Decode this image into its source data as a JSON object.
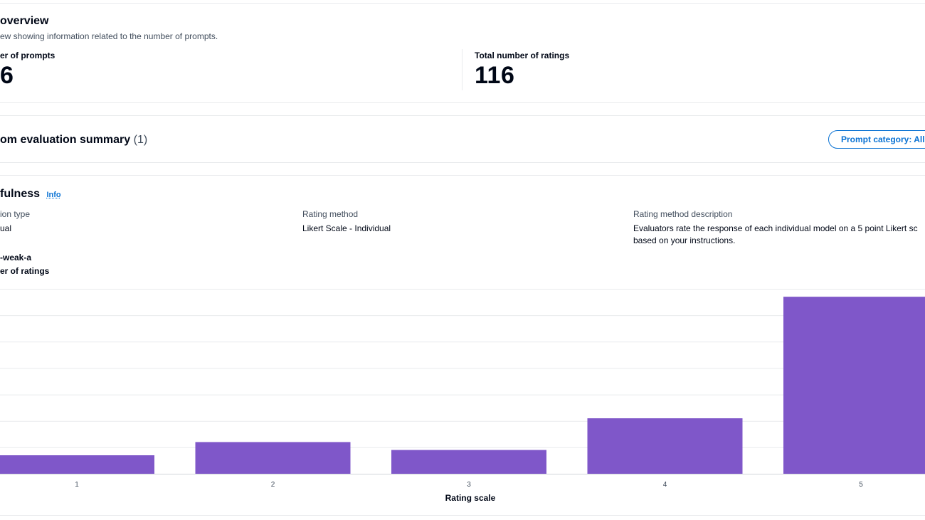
{
  "overview": {
    "title": "overview",
    "description": "ew showing information related to the number of prompts.",
    "metric_left_label": "er of prompts",
    "metric_left_value": "6",
    "metric_right_label": "Total number of ratings",
    "metric_right_value": "116"
  },
  "summary": {
    "title": "om evaluation summary",
    "count": "(1)",
    "filter_button": "Prompt category: All"
  },
  "metric": {
    "name": "fulness",
    "info_link": "Info",
    "evaluation_type_label": "ion type",
    "evaluation_type_value": "ual",
    "rating_method_label": "Rating method",
    "rating_method_value": "Likert Scale - Individual",
    "rating_desc_label": "Rating method description",
    "rating_desc_line1": "Evaluators rate the response of each individual model on a 5 point Likert sc",
    "rating_desc_line2": "based on your instructions.",
    "model_name": "-weak-a",
    "y_label": "er of ratings"
  },
  "chart_data": {
    "type": "bar",
    "categories": [
      "1",
      "2",
      "3",
      "4",
      "5"
    ],
    "values": [
      7,
      12,
      9,
      21,
      67
    ],
    "xlabel": "Rating scale",
    "ylabel": "",
    "ylim": [
      0,
      70
    ],
    "grid": true,
    "bar_color": "#7f57c9"
  }
}
